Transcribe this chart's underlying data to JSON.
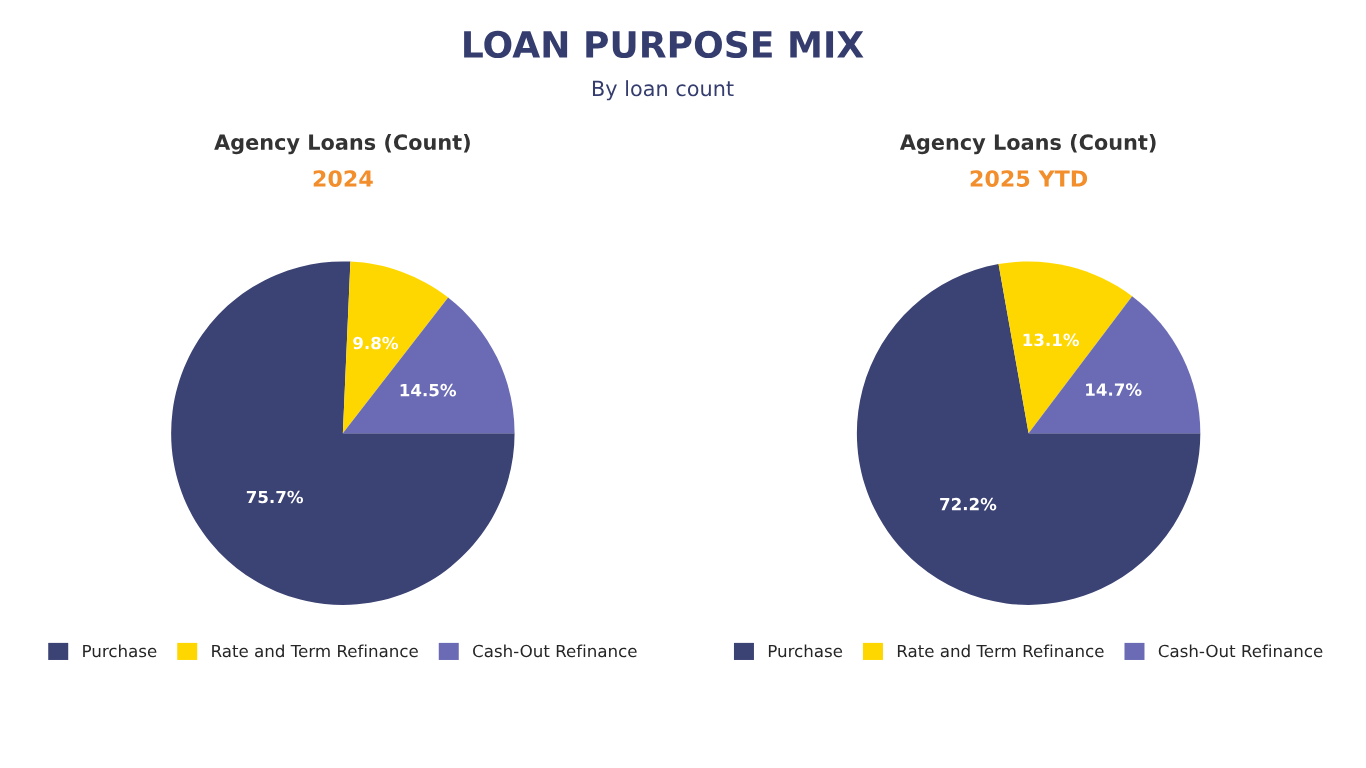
{
  "chart_data": [
    {
      "type": "pie",
      "title": "Agency Loans (Count)",
      "subtitle": "2024",
      "annotations": [
        "LOAN PURPOSE MIX",
        "By loan count"
      ],
      "categories": [
        "Purchase",
        "Rate and Term Refinance",
        "Cash-Out Refinance"
      ],
      "values": [
        75.7,
        9.8,
        14.5
      ],
      "value_labels": [
        "75.7%",
        "9.8%",
        "14.5%"
      ],
      "colors": [
        "#3b4274",
        "#ffd700",
        "#6b6bb5"
      ],
      "legend": "bottom"
    },
    {
      "type": "pie",
      "title": "Agency Loans (Count)",
      "subtitle": "2025 YTD",
      "categories": [
        "Purchase",
        "Rate and Term Refinance",
        "Cash-Out Refinance"
      ],
      "values": [
        72.2,
        13.1,
        14.7
      ],
      "value_labels": [
        "72.2%",
        "13.1%",
        "14.7%"
      ],
      "colors": [
        "#3b4274",
        "#ffd700",
        "#6b6bb5"
      ],
      "legend": "bottom"
    }
  ]
}
